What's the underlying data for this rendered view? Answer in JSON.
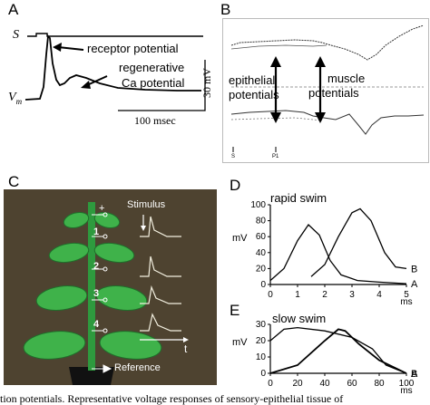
{
  "panel_a": {
    "letter": "A",
    "s_label": "S",
    "vm_label": "V",
    "vm_sub": "m",
    "receptor_label": "receptor potential",
    "regen_label_1": "regenerative",
    "regen_label_2": "Ca potential",
    "scale_v": "30 mV",
    "scale_t": "100 msec"
  },
  "panel_b": {
    "letter": "B",
    "epithelial_1": "epithelial",
    "epithelial_2": "potentials",
    "muscle_1": "muscle",
    "muscle_2": "potentials",
    "tick_s": "S",
    "tick_p1": "P1"
  },
  "panel_c": {
    "letter": "C",
    "stimulus_label": "Stimulus",
    "plus_label": "+",
    "electrodes": [
      "1",
      "2",
      "3",
      "4"
    ],
    "reference_label": "Reference",
    "time_label": "t"
  },
  "panel_d": {
    "letter": "D",
    "title": "rapid swim",
    "ylabel": "mV",
    "yticks": [
      "100",
      "80",
      "60",
      "40",
      "20",
      "0"
    ],
    "xticks": [
      "0",
      "1",
      "2",
      "3",
      "4",
      "5"
    ],
    "xunit": "ms",
    "series_a": "A",
    "series_b": "B"
  },
  "panel_e": {
    "letter": "E",
    "title": "slow swim",
    "ylabel": "mV",
    "yticks": [
      "30",
      "20",
      "10",
      "0"
    ],
    "xticks": [
      "0",
      "20",
      "40",
      "60",
      "80",
      "100"
    ],
    "xunit": "ms",
    "series_a": "A",
    "series_b": "B"
  },
  "caption": "tion potentials. Representative voltage responses of sensory-epithelial tissue of"
}
